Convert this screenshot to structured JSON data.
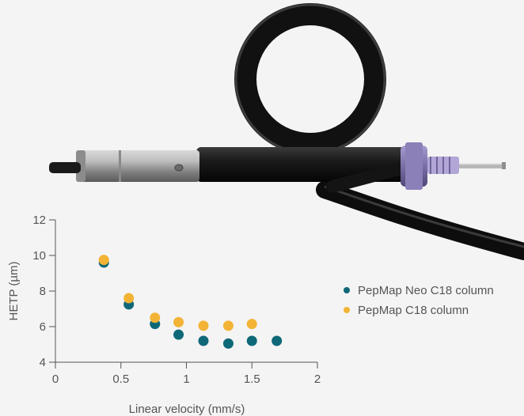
{
  "chart_data": {
    "type": "scatter",
    "xlabel": "Linear velocity (mm/s)",
    "ylabel": "HETP (µm)",
    "xlim": [
      0,
      2
    ],
    "ylim": [
      4,
      12
    ],
    "x_ticks": [
      0,
      0.5,
      1,
      1.5,
      2
    ],
    "x_tick_labels": [
      "0",
      "0.5",
      "1",
      "1.5",
      "2"
    ],
    "y_ticks": [
      4,
      6,
      8,
      10,
      12
    ],
    "y_tick_labels": [
      "4",
      "6",
      "8",
      "10",
      "12"
    ],
    "grid": false,
    "legend_position": "right",
    "series": [
      {
        "name": "PepMap Neo C18 column",
        "color": "#0f6878",
        "points": [
          {
            "x": 0.37,
            "y": 9.6
          },
          {
            "x": 0.56,
            "y": 7.25
          },
          {
            "x": 0.76,
            "y": 6.15
          },
          {
            "x": 0.94,
            "y": 5.55
          },
          {
            "x": 1.13,
            "y": 5.2
          },
          {
            "x": 1.32,
            "y": 5.05
          },
          {
            "x": 1.5,
            "y": 5.2
          },
          {
            "x": 1.69,
            "y": 5.2
          }
        ]
      },
      {
        "name": "PepMap C18 column",
        "color": "#f3b335",
        "points": [
          {
            "x": 0.37,
            "y": 9.75
          },
          {
            "x": 0.56,
            "y": 7.6
          },
          {
            "x": 0.76,
            "y": 6.5
          },
          {
            "x": 0.94,
            "y": 6.25
          },
          {
            "x": 1.13,
            "y": 6.05
          },
          {
            "x": 1.32,
            "y": 6.05
          },
          {
            "x": 1.5,
            "y": 6.15
          }
        ]
      }
    ]
  },
  "photo": {
    "subject": "column-with-loop-and-fitting-image",
    "colors": {
      "tube": "#141414",
      "metal": "#9a9a9a",
      "fitting": "#7a6fa6"
    }
  }
}
